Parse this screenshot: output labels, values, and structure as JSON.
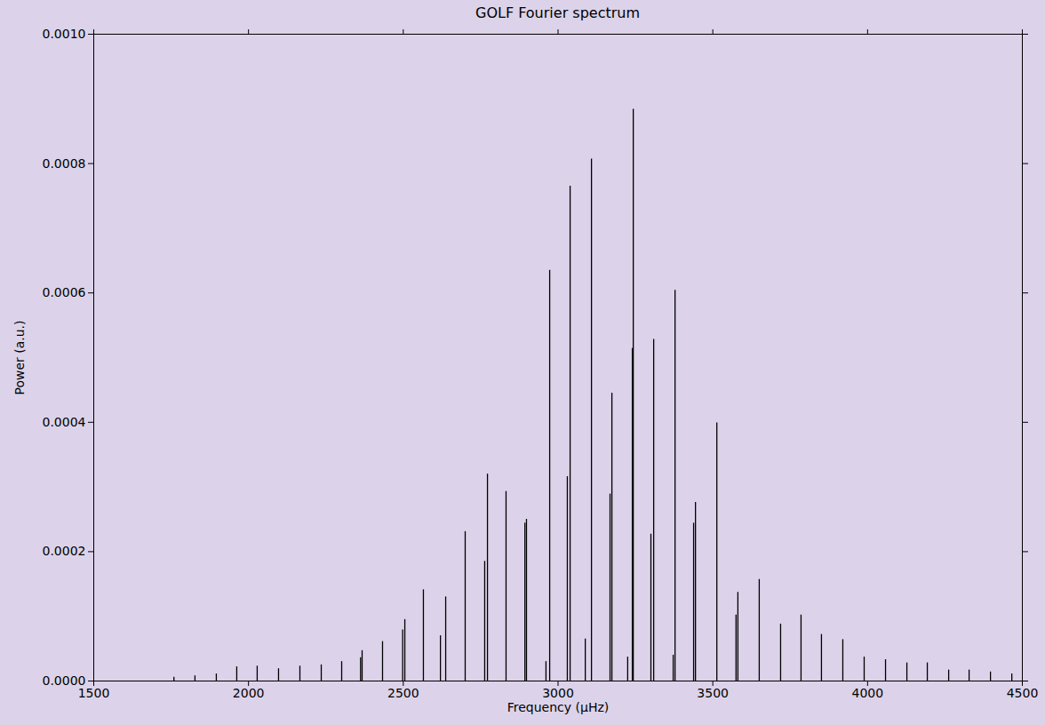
{
  "chart_data": {
    "type": "bar",
    "title": "GOLF Fourier spectrum",
    "x_label": "Frequency (μHz)",
    "y_label": "Power (a.u.)",
    "x": [
      1759,
      1827,
      1896,
      1962,
      2028,
      2097,
      2166,
      2235,
      2301,
      2362,
      2367,
      2433,
      2498,
      2505,
      2565,
      2620,
      2637,
      2700,
      2763,
      2772,
      2832,
      2893,
      2898,
      2961,
      2973,
      3030,
      3039,
      3088,
      3108,
      3168,
      3174,
      3225,
      3240,
      3243,
      3300,
      3309,
      3372,
      3378,
      3438,
      3444,
      3513,
      3575,
      3581,
      3650,
      3719,
      3785,
      3851,
      3920,
      3989,
      4058,
      4127,
      4193,
      4262,
      4328,
      4397,
      4466
    ],
    "values": [
      6e-06,
      8e-06,
      1.1e-05,
      2.2e-05,
      2.3e-05,
      1.9e-05,
      2.3e-05,
      2.5e-05,
      3e-05,
      3.6e-05,
      4.7e-05,
      6.1e-05,
      7.9e-05,
      9.5e-05,
      0.000141,
      7e-05,
      0.00013,
      0.000231,
      0.000185,
      0.00032,
      0.000293,
      0.000244,
      0.00025,
      3e-05,
      0.000635,
      0.000316,
      0.000765,
      6.5e-05,
      0.000807,
      0.000289,
      0.000445,
      3.7e-05,
      0.000514,
      0.000884,
      0.000227,
      0.000528,
      4e-05,
      0.000604,
      0.000244,
      0.000276,
      0.000399,
      0.000102,
      0.000137,
      0.000157,
      8.8e-05,
      0.000102,
      7.2e-05,
      6.4e-05,
      3.7e-05,
      3.3e-05,
      2.8e-05,
      2.8e-05,
      1.7e-05,
      1.7e-05,
      1.4e-05,
      1.1e-05
    ],
    "color": "#000000",
    "xlim": [
      1500,
      4500
    ],
    "xticks": [
      1500,
      2000,
      2500,
      3000,
      3500,
      4000,
      4500
    ],
    "ylim": [
      0,
      0.001
    ],
    "yticks": [
      {
        "value": 0,
        "label": "0.0000"
      },
      {
        "value": 0.0002,
        "label": "0.0002"
      },
      {
        "value": 0.0004,
        "label": "0.0004"
      },
      {
        "value": 0.0006,
        "label": "0.0006"
      },
      {
        "value": 0.0008,
        "label": "0.0008"
      },
      {
        "value": 0.001,
        "label": "0.0010"
      }
    ],
    "grid": false
  }
}
